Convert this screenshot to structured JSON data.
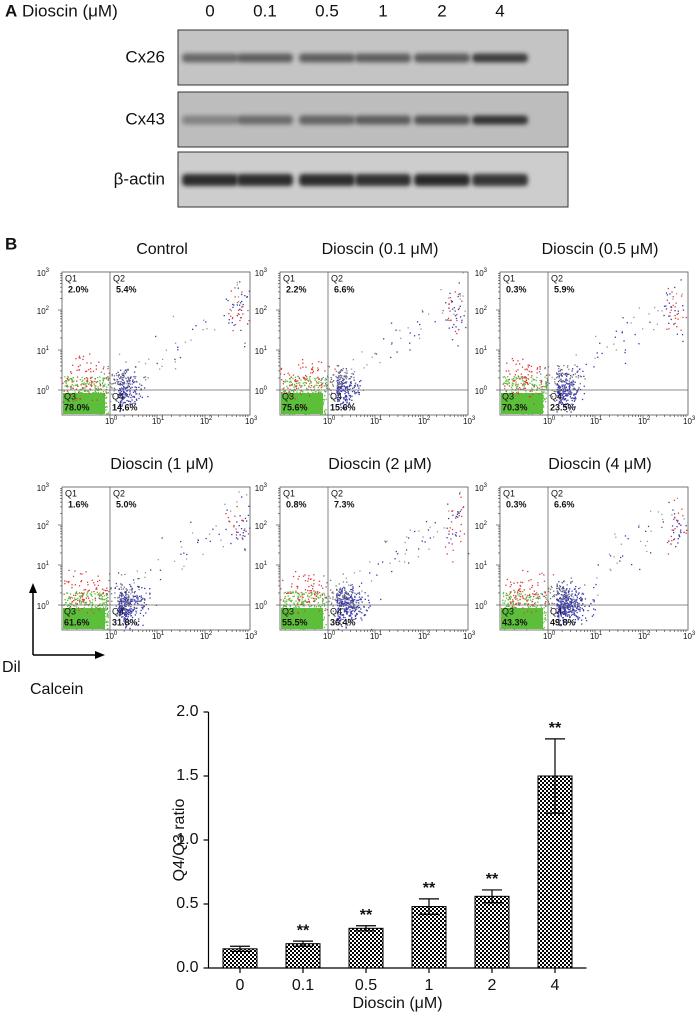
{
  "panel_a": {
    "label": "A",
    "header": "Dioscin (μM)",
    "concentrations": [
      "0",
      "0.1",
      "0.5",
      "1",
      "2",
      "4"
    ],
    "rows": [
      "Cx26",
      "Cx43",
      "β-actin"
    ]
  },
  "panel_b": {
    "label": "B",
    "y_label": "Dil",
    "x_label": "Calcein",
    "quadrant_names": [
      "Q1",
      "Q2",
      "Q3",
      "Q4"
    ],
    "tick_base": "10",
    "tick_exponents": [
      "0",
      "1",
      "2",
      "3"
    ],
    "plots": [
      {
        "title": "Control",
        "quadrants": [
          "2.0%",
          "5.4%",
          "78.0%",
          "14.6%"
        ]
      },
      {
        "title": "Dioscin (0.1 μM)",
        "quadrants": [
          "2.2%",
          "6.6%",
          "75.6%",
          "15.6%"
        ]
      },
      {
        "title": "Dioscin (0.5 μM)",
        "quadrants": [
          "0.3%",
          "5.9%",
          "70.3%",
          "23.5%"
        ]
      },
      {
        "title": "Dioscin (1 μM)",
        "quadrants": [
          "1.6%",
          "5.0%",
          "61.6%",
          "31.8%"
        ]
      },
      {
        "title": "Dioscin (2 μM)",
        "quadrants": [
          "0.8%",
          "7.3%",
          "55.5%",
          "36.4%"
        ]
      },
      {
        "title": "Dioscin (4 μM)",
        "quadrants": [
          "0.3%",
          "6.6%",
          "43.3%",
          "49.8%"
        ]
      }
    ]
  },
  "chart_data": {
    "type": "bar",
    "x_label": "Dioscin (μM)",
    "y_label": "Q4/Q3 ratio",
    "categories": [
      "0",
      "0.1",
      "0.5",
      "1",
      "2",
      "4"
    ],
    "values": [
      0.15,
      0.19,
      0.31,
      0.48,
      0.56,
      1.5
    ],
    "errors": [
      0.02,
      0.02,
      0.02,
      0.06,
      0.05,
      0.29
    ],
    "annotations": [
      null,
      "**",
      "**",
      "**",
      "**",
      "**"
    ],
    "color": "#000000",
    "ylim": [
      0,
      2.0
    ],
    "yticks": [
      {
        "value": 0,
        "label": "0.0"
      },
      {
        "value": 0.5,
        "label": "0.5"
      },
      {
        "value": 1,
        "label": "1.0"
      },
      {
        "value": 1.5,
        "label": "1.5"
      },
      {
        "value": 2,
        "label": "2.0"
      }
    ]
  }
}
